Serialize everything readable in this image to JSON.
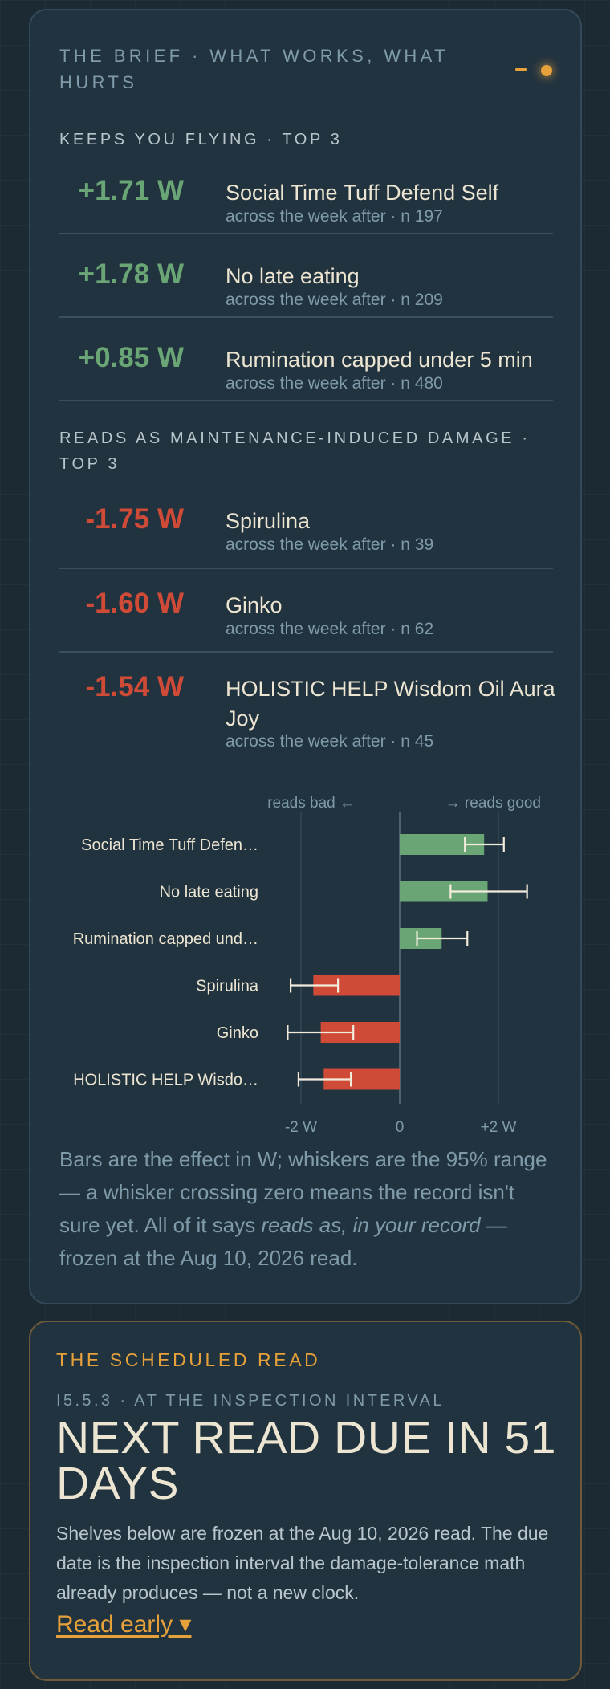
{
  "brief": {
    "title": "THE BRIEF · WHAT WORKS, WHAT HURTS",
    "status_color": "#e6a13a",
    "keeps_label": "KEEPS YOU FLYING · TOP 3",
    "keeps": [
      {
        "value": "+1.71 W",
        "name": "Social Time Tuff Defend Self",
        "sub": "across the week after · n 197"
      },
      {
        "value": "+1.78 W",
        "name": "No late eating",
        "sub": "across the week after · n 209"
      },
      {
        "value": "+0.85 W",
        "name": "Rumination capped under 5 min",
        "sub": "across the week after · n 480"
      }
    ],
    "damage_label": "READS AS MAINTENANCE-INDUCED DAMAGE · TOP 3",
    "damage": [
      {
        "value": "-1.75 W",
        "name": "Spirulina",
        "sub": "across the week after · n 39"
      },
      {
        "value": "-1.60 W",
        "name": "Ginko",
        "sub": "across the week after · n 62"
      },
      {
        "value": "-1.54 W",
        "name": "HOLISTIC HELP Wisdom Oil Aura Joy",
        "sub": "across the week after · n 45"
      }
    ],
    "caption_pre": "Bars are the effect in W; whiskers are the 95% range — a whisker crossing zero means the record isn't sure yet. All of it says ",
    "caption_em": "reads as, in your record",
    "caption_post": " — frozen at the Aug 10, 2026 read."
  },
  "chart_data": {
    "type": "bar",
    "orientation": "horizontal",
    "direction_labels": {
      "left": "reads bad ←",
      "right": "→ reads good"
    },
    "categories": [
      "Social Time Tuff Defen…",
      "No late eating",
      "Rumination capped und…",
      "Spirulina",
      "Ginko",
      "HOLISTIC HELP Wisdo…"
    ],
    "values": [
      1.71,
      1.78,
      0.85,
      -1.75,
      -1.6,
      -1.54
    ],
    "ci_low": [
      1.32,
      1.03,
      0.35,
      -2.21,
      -2.27,
      -2.05
    ],
    "ci_high": [
      2.11,
      2.58,
      1.37,
      -1.25,
      -0.94,
      -0.99
    ],
    "xlim": [
      -2.6,
      2.6
    ],
    "xticks": [
      -2,
      0,
      2
    ],
    "xtick_labels": [
      "-2 W",
      "0",
      "+2 W"
    ],
    "colors": {
      "positive": "#6aa675",
      "negative": "#cf4b38",
      "whisker": "#f2ecdc",
      "grid": "#3c5261",
      "zero": "#5c7382",
      "label": "#ece5d1",
      "tick": "#7f9ba9"
    }
  },
  "scheduled": {
    "label": "THE SCHEDULED READ",
    "sub": "i5.5.3 · AT THE INSPECTION INTERVAL",
    "headline": "NEXT READ DUE IN 51 DAYS",
    "body": "Shelves below are frozen at the Aug 10, 2026 read. The due date is the inspection interval the damage-tolerance math already produces — not a new clock.",
    "link": "Read early ▾"
  }
}
